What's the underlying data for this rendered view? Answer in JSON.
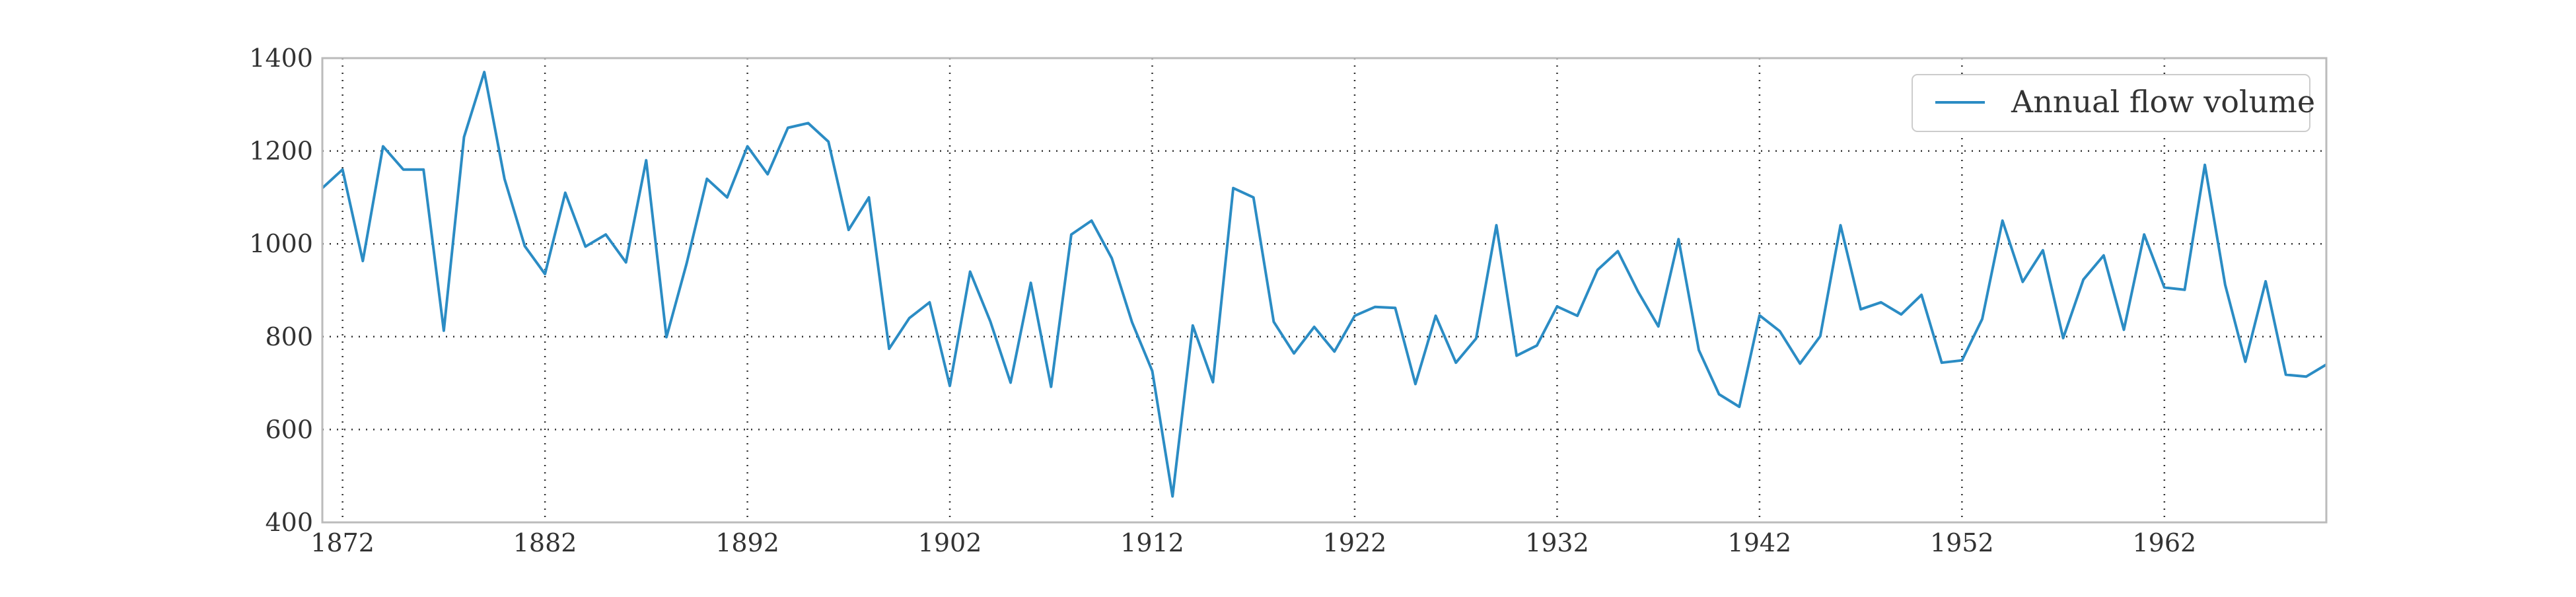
{
  "chart_data": {
    "type": "line",
    "title": "",
    "xlabel": "",
    "ylabel": "",
    "xlim": [
      1871,
      1970
    ],
    "ylim": [
      400,
      1400
    ],
    "x_ticks": [
      "1872",
      "1882",
      "1892",
      "1902",
      "1912",
      "1922",
      "1932",
      "1942",
      "1952",
      "1962"
    ],
    "y_ticks": [
      "400",
      "600",
      "800",
      "1000",
      "1200",
      "1400"
    ],
    "grid": true,
    "grid_style": "dotted",
    "legend_position": "top-right",
    "colors": {
      "series": "#2b8cc4",
      "grid": "#333333",
      "frame": "#bbbbbb"
    },
    "series": [
      {
        "name": "Annual flow volume",
        "x": [
          1871,
          1872,
          1873,
          1874,
          1875,
          1876,
          1877,
          1878,
          1879,
          1880,
          1881,
          1882,
          1883,
          1884,
          1885,
          1886,
          1887,
          1888,
          1889,
          1890,
          1891,
          1892,
          1893,
          1894,
          1895,
          1896,
          1897,
          1898,
          1899,
          1900,
          1901,
          1902,
          1903,
          1904,
          1905,
          1906,
          1907,
          1908,
          1909,
          1910,
          1911,
          1912,
          1913,
          1914,
          1915,
          1916,
          1917,
          1918,
          1919,
          1920,
          1921,
          1922,
          1923,
          1924,
          1925,
          1926,
          1927,
          1928,
          1929,
          1930,
          1931,
          1932,
          1933,
          1934,
          1935,
          1936,
          1937,
          1938,
          1939,
          1940,
          1941,
          1942,
          1943,
          1944,
          1945,
          1946,
          1947,
          1948,
          1949,
          1950,
          1951,
          1952,
          1953,
          1954,
          1955,
          1956,
          1957,
          1958,
          1959,
          1960,
          1961,
          1962,
          1963,
          1964,
          1965,
          1966,
          1967,
          1968,
          1969,
          1970
        ],
        "values": [
          1120,
          1160,
          963,
          1210,
          1160,
          1160,
          813,
          1230,
          1370,
          1140,
          995,
          935,
          1110,
          994,
          1020,
          960,
          1180,
          799,
          958,
          1140,
          1100,
          1210,
          1150,
          1250,
          1260,
          1220,
          1030,
          1100,
          774,
          840,
          874,
          694,
          940,
          833,
          701,
          916,
          692,
          1020,
          1050,
          969,
          831,
          726,
          456,
          824,
          702,
          1120,
          1100,
          832,
          764,
          821,
          768,
          845,
          864,
          862,
          698,
          845,
          744,
          796,
          1040,
          759,
          781,
          865,
          845,
          944,
          984,
          897,
          822,
          1010,
          771,
          676,
          649,
          846,
          812,
          742,
          801,
          1040,
          859,
          874,
          848,
          890,
          744,
          749,
          838,
          1050,
          918,
          986,
          797,
          923,
          975,
          815,
          1020,
          906,
          901,
          1170,
          912,
          746,
          919,
          718,
          714,
          740
        ]
      }
    ]
  }
}
